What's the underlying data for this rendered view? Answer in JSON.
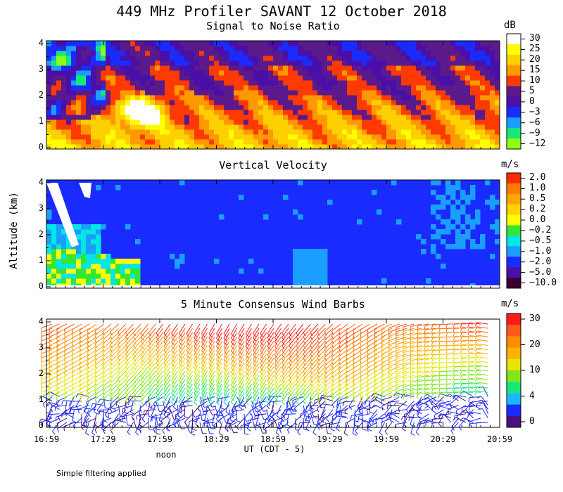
{
  "title": "449 MHz Profiler SAVANT 12 October 2018",
  "ylabel": "Altitude (km)",
  "xlabel": "UT (CDT - 5)",
  "noon_label": "noon",
  "footnote": "Simple filtering applied",
  "xticks": [
    "16:59",
    "17:29",
    "17:59",
    "18:29",
    "18:59",
    "19:29",
    "19:59",
    "20:29",
    "20:59"
  ],
  "yticks": [
    "0",
    "1",
    "2",
    "3",
    "4"
  ],
  "chart_data": [
    {
      "type": "heatmap",
      "title": "Signal to Noise Ratio",
      "unit": "dB",
      "ylim": [
        0,
        4
      ],
      "colorbar": {
        "labels": [
          "30",
          "25",
          "20",
          "15",
          "10",
          "5",
          "0",
          "−3",
          "−6",
          "−9",
          "−12"
        ],
        "colors": [
          "#ffffff",
          "#ffff00",
          "#ffd000",
          "#ff9900",
          "#ff3a00",
          "#5a1a8c",
          "#4a0fa8",
          "#1a2bff",
          "#1a9eff",
          "#19e67a",
          "#8cff14"
        ]
      }
    },
    {
      "type": "heatmap",
      "title": "Vertical Velocity",
      "unit": "m/s",
      "ylim": [
        0,
        4
      ],
      "colorbar": {
        "labels": [
          "2.0",
          "1.0",
          "0.5",
          "0.2",
          "0.0",
          "−0.2",
          "−0.5",
          "−1.0",
          "−2.0",
          "−5.0",
          "−10.0"
        ],
        "colors": [
          "#ff2a00",
          "#ff7a00",
          "#ffa500",
          "#ffd200",
          "#ffff00",
          "#33e633",
          "#00e6e6",
          "#1a9eff",
          "#1a2bff",
          "#4a0fa8",
          "#3a0030"
        ]
      }
    },
    {
      "type": "wind-barbs",
      "title": "5 Minute Consensus Wind Barbs",
      "unit": "m/s",
      "ylim": [
        0,
        4
      ],
      "colorbar": {
        "labels": [
          "30",
          "20",
          "10",
          "4",
          "0"
        ],
        "colors": [
          "#ff1a1a",
          "#ff5a1a",
          "#ff8c00",
          "#ffb000",
          "#e6e600",
          "#80e61a",
          "#19e67a",
          "#1ab8ff",
          "#1a2bff",
          "#4a0f80"
        ]
      }
    }
  ]
}
